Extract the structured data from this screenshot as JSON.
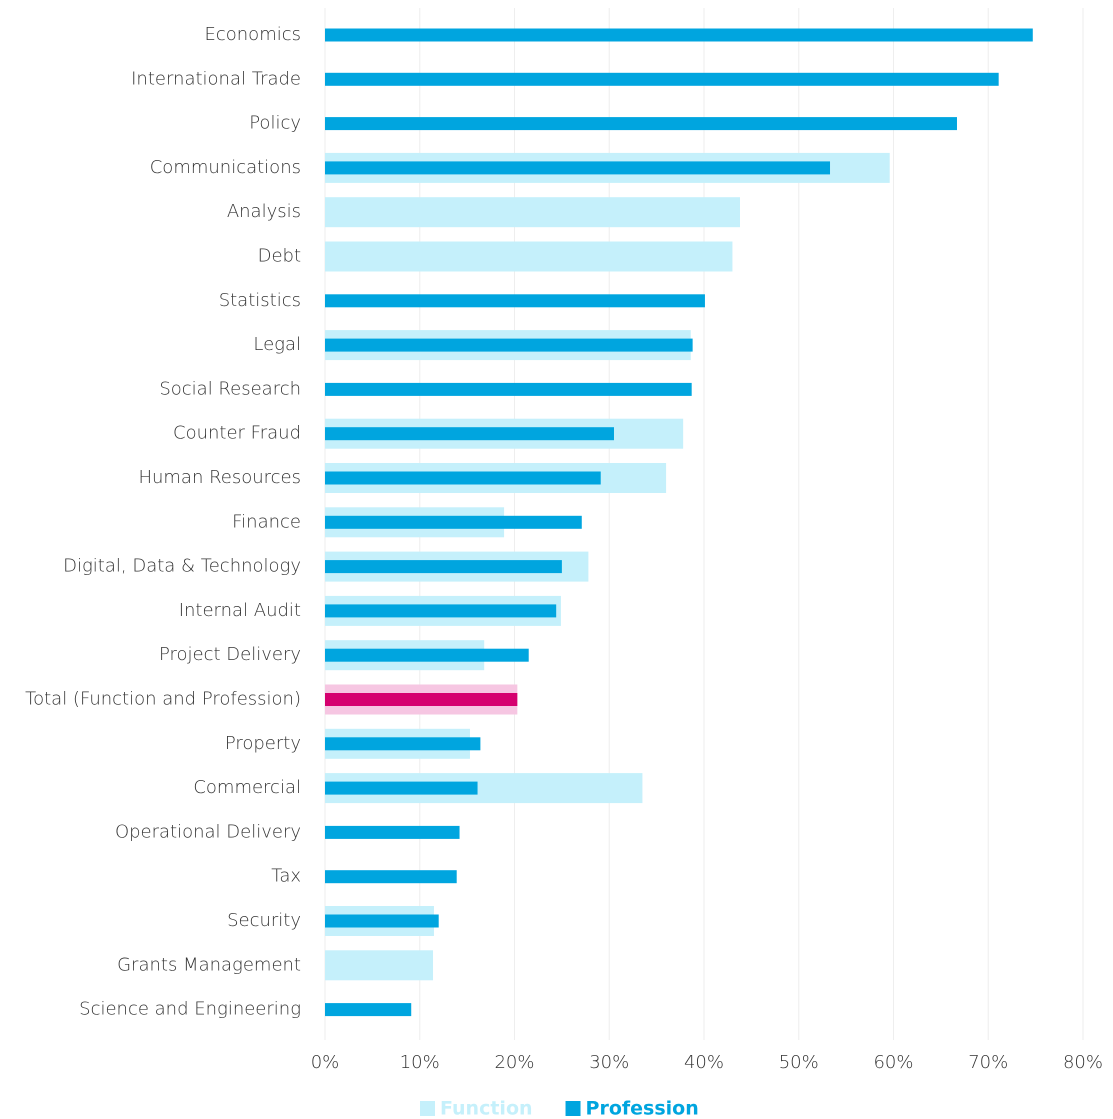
{
  "chart_data": {
    "type": "bar",
    "orientation": "horizontal",
    "overlap": true,
    "categories": [
      "Economics",
      "International Trade",
      "Policy",
      "Communications",
      "Analysis",
      "Debt",
      "Statistics",
      "Legal",
      "Social Research",
      "Counter Fraud",
      "Human Resources",
      "Finance",
      "Digital, Data & Technology",
      "Internal Audit",
      "Project Delivery",
      "Total (Function and Profession)",
      "Property",
      "Commercial",
      "Operational Delivery",
      "Tax",
      "Security",
      "Grants Management",
      "Science and Engineering"
    ],
    "series": [
      {
        "name": "Function",
        "color": "#c5f0fb",
        "colors": [
          "#c5f0fb",
          "#c5f0fb",
          "#c5f0fb",
          "#c5f0fb",
          "#c5f0fb",
          "#c5f0fb",
          "#c5f0fb",
          "#c5f0fb",
          "#c5f0fb",
          "#c5f0fb",
          "#c5f0fb",
          "#c5f0fb",
          "#c5f0fb",
          "#c5f0fb",
          "#c5f0fb",
          "#f6c6e2",
          "#c5f0fb",
          "#c5f0fb",
          "#c5f0fb",
          "#c5f0fb",
          "#c5f0fb",
          "#c5f0fb",
          "#c5f0fb"
        ],
        "values": [
          null,
          null,
          null,
          59.6,
          43.8,
          43.0,
          null,
          38.6,
          null,
          37.8,
          36.0,
          18.9,
          27.8,
          24.9,
          16.8,
          20.3,
          15.3,
          33.5,
          null,
          null,
          11.5,
          11.4,
          null
        ]
      },
      {
        "name": "Profession",
        "color": "#00a5df",
        "colors": [
          "#00a5df",
          "#00a5df",
          "#00a5df",
          "#00a5df",
          "#00a5df",
          "#00a5df",
          "#00a5df",
          "#00a5df",
          "#00a5df",
          "#00a5df",
          "#00a5df",
          "#00a5df",
          "#00a5df",
          "#00a5df",
          "#00a5df",
          "#d5006f",
          "#00a5df",
          "#00a5df",
          "#00a5df",
          "#00a5df",
          "#00a5df",
          "#00a5df",
          "#00a5df"
        ],
        "values": [
          74.7,
          71.1,
          66.7,
          53.3,
          null,
          null,
          40.1,
          38.8,
          38.7,
          30.5,
          29.1,
          27.1,
          25.0,
          24.4,
          21.5,
          20.3,
          16.4,
          16.1,
          14.2,
          13.9,
          12.0,
          null,
          9.1
        ]
      }
    ],
    "xlim": [
      0,
      80
    ],
    "xticks": [
      {
        "value": 0,
        "label": "0%"
      },
      {
        "value": 10,
        "label": "10%"
      },
      {
        "value": 20,
        "label": "20%"
      },
      {
        "value": 30,
        "label": "30%"
      },
      {
        "value": 40,
        "label": "40%"
      },
      {
        "value": 50,
        "label": "50%"
      },
      {
        "value": 60,
        "label": "60%"
      },
      {
        "value": 70,
        "label": "70%"
      },
      {
        "value": 80,
        "label": "80%"
      }
    ],
    "grid": true,
    "legend": "bottom"
  }
}
